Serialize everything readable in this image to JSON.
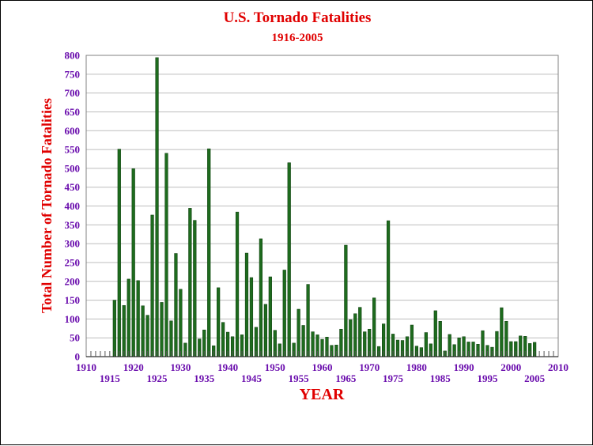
{
  "chart_data": {
    "type": "bar",
    "title": "U.S. Tornado Fatalities",
    "subtitle": "1916-2005",
    "xlabel": "YEAR",
    "ylabel": "Total Number of Tornado Fatalities",
    "xlim": [
      1910,
      2010
    ],
    "ylim": [
      0,
      800
    ],
    "y_ticks": [
      0,
      50,
      100,
      150,
      200,
      250,
      300,
      350,
      400,
      450,
      500,
      550,
      600,
      650,
      700,
      750,
      800
    ],
    "x_ticks_upper": [
      1910,
      1920,
      1930,
      1940,
      1950,
      1960,
      1970,
      1980,
      1990,
      2000,
      2010
    ],
    "x_ticks_lower": [
      1915,
      1925,
      1935,
      1945,
      1955,
      1965,
      1975,
      1985,
      1995,
      2005
    ],
    "grid": "horizontal",
    "legend": "none",
    "x": [
      1916,
      1917,
      1918,
      1919,
      1920,
      1921,
      1922,
      1923,
      1924,
      1925,
      1926,
      1927,
      1928,
      1929,
      1930,
      1931,
      1932,
      1933,
      1934,
      1935,
      1936,
      1937,
      1938,
      1939,
      1940,
      1941,
      1942,
      1943,
      1944,
      1945,
      1946,
      1947,
      1948,
      1949,
      1950,
      1951,
      1952,
      1953,
      1954,
      1955,
      1956,
      1957,
      1958,
      1959,
      1960,
      1961,
      1962,
      1963,
      1964,
      1965,
      1966,
      1967,
      1968,
      1969,
      1970,
      1971,
      1972,
      1973,
      1974,
      1975,
      1976,
      1977,
      1978,
      1979,
      1980,
      1981,
      1982,
      1983,
      1984,
      1985,
      1986,
      1987,
      1988,
      1989,
      1990,
      1991,
      1992,
      1993,
      1994,
      1995,
      1996,
      1997,
      1998,
      1999,
      2000,
      2001,
      2002,
      2003,
      2004,
      2005
    ],
    "values": [
      150,
      551,
      136,
      206,
      499,
      202,
      135,
      110,
      376,
      794,
      144,
      540,
      95,
      274,
      179,
      36,
      394,
      362,
      47,
      71,
      552,
      29,
      183,
      91,
      65,
      53,
      384,
      58,
      275,
      210,
      78,
      313,
      139,
      212,
      70,
      34,
      230,
      515,
      36,
      126,
      83,
      192,
      66,
      58,
      46,
      52,
      30,
      31,
      73,
      296,
      98,
      114,
      131,
      66,
      73,
      156,
      27,
      87,
      361,
      60,
      44,
      43,
      53,
      84,
      28,
      24,
      64,
      34,
      122,
      94,
      15,
      59,
      32,
      50,
      53,
      39,
      39,
      33,
      69,
      30,
      25,
      67,
      130,
      94,
      40,
      40,
      55,
      54,
      35,
      38
    ],
    "colors": {
      "bar": "#1e6b1e",
      "bar_edge": "#0a3a0a",
      "grid": "#bdbdbd",
      "title": "#e00000",
      "ticks": "#6a0dad"
    }
  }
}
